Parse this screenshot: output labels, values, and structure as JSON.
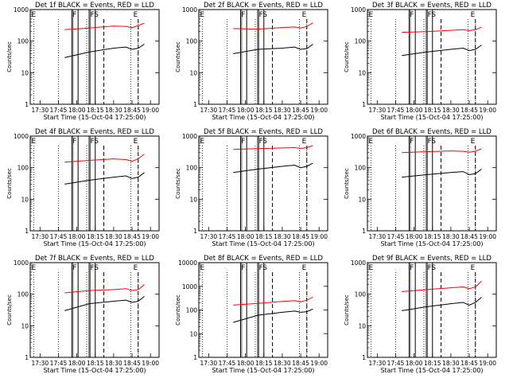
{
  "common": {
    "xlabel": "Start Time (15-Oct-04 17:25:00)",
    "ylabel": "Counts/sec",
    "x_ticks": [
      "17:30",
      "17:45",
      "18:00",
      "18:15",
      "18:30",
      "18:45",
      "19:00"
    ],
    "markers": {
      "E": "E",
      "F": "F",
      "S": "S"
    },
    "series": [
      {
        "name": "Events",
        "color": "#000000"
      },
      {
        "name": "LLD",
        "color": "#ff0000"
      }
    ]
  },
  "chart_data": [
    {
      "type": "line",
      "title": "Det 1f BLACK = Events, RED = LLD",
      "ylim": [
        1,
        1000
      ],
      "y_ticks": [
        "1",
        "10",
        "100",
        "1000"
      ],
      "x_minutes": [
        20,
        40,
        60,
        70,
        75,
        80,
        85
      ],
      "black": [
        30,
        45,
        60,
        65,
        55,
        60,
        80
      ],
      "red": [
        230,
        260,
        300,
        290,
        270,
        310,
        370
      ]
    },
    {
      "type": "line",
      "title": "Det 2f BLACK = Events, RED = LLD",
      "ylim": [
        1,
        1000
      ],
      "y_ticks": [
        "1",
        "10",
        "100",
        "1000"
      ],
      "x_minutes": [
        20,
        40,
        60,
        70,
        75,
        80,
        85
      ],
      "black": [
        40,
        55,
        60,
        65,
        55,
        58,
        80
      ],
      "red": [
        250,
        240,
        270,
        280,
        260,
        290,
        380
      ]
    },
    {
      "type": "line",
      "title": "Det 3f BLACK = Events, RED = LLD",
      "ylim": [
        1,
        1000
      ],
      "y_ticks": [
        "1",
        "10",
        "100",
        "1000"
      ],
      "x_minutes": [
        20,
        40,
        60,
        70,
        75,
        80,
        85
      ],
      "black": [
        35,
        45,
        55,
        60,
        50,
        55,
        75
      ],
      "red": [
        190,
        200,
        220,
        230,
        215,
        230,
        280
      ]
    },
    {
      "type": "line",
      "title": "Det 4f BLACK = Events, RED = LLD",
      "ylim": [
        1,
        1000
      ],
      "y_ticks": [
        "1",
        "10",
        "100",
        "1000"
      ],
      "x_minutes": [
        20,
        40,
        60,
        70,
        75,
        80,
        85
      ],
      "black": [
        30,
        40,
        50,
        55,
        45,
        50,
        70
      ],
      "red": [
        150,
        170,
        190,
        180,
        160,
        190,
        270
      ]
    },
    {
      "type": "line",
      "title": "Det 5f BLACK = Events, RED = LLD",
      "ylim": [
        1,
        1000
      ],
      "y_ticks": [
        "1",
        "10",
        "100",
        "1000"
      ],
      "x_minutes": [
        20,
        40,
        60,
        70,
        75,
        80,
        85
      ],
      "black": [
        70,
        90,
        110,
        120,
        100,
        110,
        140
      ],
      "red": [
        380,
        400,
        420,
        430,
        410,
        430,
        500
      ]
    },
    {
      "type": "line",
      "title": "Det 6f BLACK = Events, RED = LLD",
      "ylim": [
        1,
        1000
      ],
      "y_ticks": [
        "1",
        "10",
        "100",
        "1000"
      ],
      "x_minutes": [
        20,
        40,
        60,
        70,
        75,
        80,
        85
      ],
      "black": [
        50,
        60,
        70,
        75,
        60,
        65,
        90
      ],
      "red": [
        300,
        320,
        340,
        330,
        310,
        330,
        400
      ]
    },
    {
      "type": "line",
      "title": "Det 7f BLACK = Events, RED = LLD",
      "ylim": [
        1,
        1000
      ],
      "y_ticks": [
        "1",
        "10",
        "100",
        "1000"
      ],
      "x_minutes": [
        20,
        40,
        60,
        70,
        75,
        80,
        85
      ],
      "black": [
        30,
        50,
        60,
        65,
        55,
        60,
        85
      ],
      "red": [
        110,
        130,
        140,
        150,
        130,
        140,
        200
      ]
    },
    {
      "type": "line",
      "title": "Det 8f BLACK = Events, RED = LLD",
      "ylim": [
        1,
        10000
      ],
      "y_ticks": [
        "1",
        "10",
        "100",
        "1000",
        "10000"
      ],
      "x_minutes": [
        20,
        40,
        60,
        70,
        75,
        80,
        85
      ],
      "black": [
        30,
        60,
        80,
        90,
        80,
        85,
        110
      ],
      "red": [
        160,
        190,
        230,
        250,
        220,
        260,
        350
      ]
    },
    {
      "type": "line",
      "title": "Det 9f BLACK = Events, RED = LLD",
      "ylim": [
        1,
        1000
      ],
      "y_ticks": [
        "1",
        "10",
        "100",
        "1000"
      ],
      "x_minutes": [
        20,
        40,
        60,
        70,
        75,
        80,
        85
      ],
      "black": [
        30,
        40,
        50,
        55,
        45,
        55,
        80
      ],
      "red": [
        120,
        140,
        160,
        170,
        150,
        170,
        260
      ]
    }
  ]
}
